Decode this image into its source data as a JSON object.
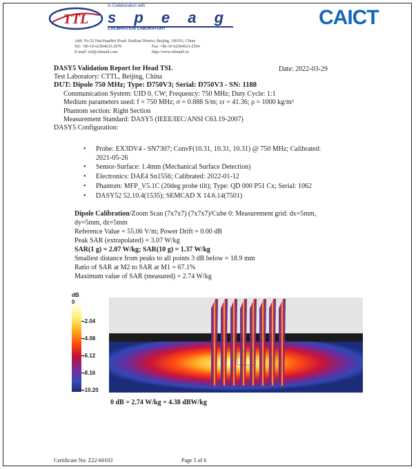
{
  "header": {
    "ttl_logo": "TTL",
    "collab": "In Collaboration with",
    "speag": "s p e a g",
    "calib_lab": "CALIBRATION LABORATORY",
    "caict": "CAICT",
    "address": "Add: No.52 HuaYuanBei Road, Haidian District, Beijing, 100191, China",
    "tel": "Tel: +86-10-62304633-2079",
    "fax": "Fax: +86-10-62304633-2504",
    "email": "E-mail: cttl@chinattl.com",
    "web": "http://www.chinattl.cn"
  },
  "report": {
    "title": "DASY5 Validation Report for Head TSL",
    "date": "Date: 2022-03-29",
    "lab": "Test Laboratory: CTTL, Beijing, China",
    "dut": "DUT: Dipole 750 MHz; Type: D750V3; Serial: D750V3 - SN: 1188",
    "comm": "Communication System: UID 0, CW; Frequency: 750 MHz; Duty Cycle: 1:1",
    "medium": "Medium parameters used: f = 750 MHz; σ = 0.888 S/m; εr = 41.36; ρ = 1000 kg/m³",
    "phantom_section": "Phantom section: Right Section",
    "standard": "Measurement Standard: DASY5 (IEEE/IEC/ANSI C63.19-2007)",
    "config_title": "DASY5 Configuration:"
  },
  "config": {
    "probe_l1": "Probe: EX3DV4 - SN7307; ConvF(10.31, 10.31, 10.31) @ 750 MHz; Calibrated:",
    "probe_l2": "2021-05-26",
    "sensor": "Sensor-Surface: 1.4mm (Mechanical Surface Detection)",
    "electronics": "Electronics: DAE4 Sn1556; Calibrated: 2022-01-12",
    "phantom": "Phantom: MFP_V5.1C (20deg probe tilt); Type: QD 000 P51 Cx; Serial: 1062",
    "software": "DASY52 52.10.4(1535); SEMCAD X 14.6.14(7501)"
  },
  "calibration": {
    "title_bold": "Dipole Calibration",
    "title_rest": "/Zoom Scan (7x7x7) (7x7x7)/Cube 0: Measurement grid: dx=5mm,",
    "title_l2": "dy=5mm, dz=5mm",
    "ref": "Reference Value = 55.06 V/m; Power Drift = 0.00 dB",
    "peak": "Peak SAR (extrapolated) = 3.07 W/kg",
    "sar": "SAR(1 g) = 2.07 W/kg; SAR(10 g) = 1.37 W/kg",
    "smallest": "Smallest distance from peaks to all points 3 dB below = 18.9 mm",
    "ratio": "Ratio of SAR at M2 to SAR at M1 = 67.1%",
    "max": "Maximum value of SAR (measured) = 2.74 W/kg"
  },
  "colorbar": {
    "unit": "dB",
    "ticks": [
      "0",
      "-2.04",
      "-4.08",
      "-6.12",
      "-8.16",
      "-10.20"
    ]
  },
  "plot_caption": "0 dB = 2.74 W/kg = 4.38 dBW/kg",
  "footer": {
    "certificate": "Certificate No: Z22-60103",
    "page": "Page 5 of 6"
  }
}
